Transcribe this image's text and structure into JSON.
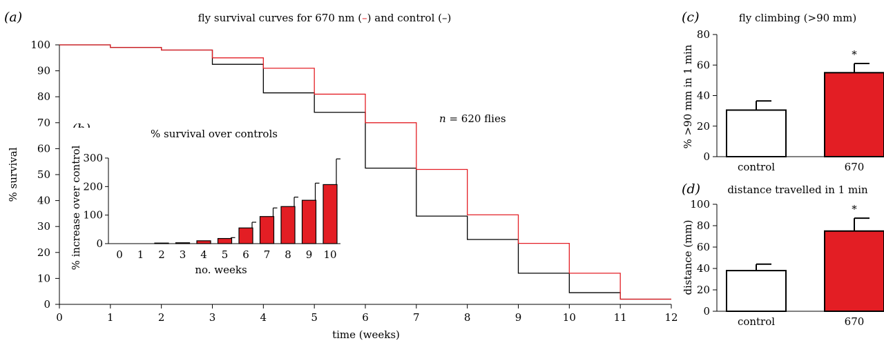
{
  "figure": {
    "panel_a": {
      "letter": "a",
      "n_label": "n",
      "n_rest": " = 620 flies"
    },
    "panel_b": {
      "letter": "b"
    },
    "panel_c": {
      "letter": "c"
    },
    "panel_d": {
      "letter": "d"
    }
  },
  "chart_data": [
    {
      "id": "a",
      "type": "line",
      "step": true,
      "title_parts": [
        "fly survival curves for 670 nm (",
        "–",
        ") and control (",
        "–",
        ")"
      ],
      "title_colors": [
        "#000000",
        "#e31e24",
        "#000000",
        "#000000",
        "#000000"
      ],
      "xlabel": "time (weeks)",
      "ylabel": "% survival",
      "xlim": [
        0,
        12
      ],
      "ylim": [
        0,
        100
      ],
      "x_ticks": [
        "0",
        "1",
        "2",
        "3",
        "4",
        "5",
        "6",
        "7",
        "8",
        "9",
        "10",
        "11",
        "12"
      ],
      "y_ticks": [
        "0",
        "10",
        "20",
        "30",
        "40",
        "50",
        "60",
        "70",
        "80",
        "90",
        "100"
      ],
      "series": [
        {
          "color": "#000000",
          "x": [
            0,
            1,
            2,
            3,
            4,
            5,
            6,
            7,
            8,
            9,
            10,
            11,
            12
          ],
          "y": [
            100,
            99,
            98,
            92.5,
            81.5,
            74,
            52.5,
            34,
            25,
            12,
            4.5,
            2,
            2
          ]
        },
        {
          "color": "#e31e24",
          "x": [
            0,
            1,
            2,
            3,
            4,
            5,
            6,
            7,
            8,
            9,
            10,
            11,
            12
          ],
          "y": [
            100,
            99,
            98,
            95,
            91,
            81,
            70,
            52,
            34.5,
            23.5,
            12,
            2,
            2
          ]
        }
      ]
    },
    {
      "id": "b",
      "type": "bar",
      "title": "% survival over controls",
      "xlabel": "no. weeks",
      "ylabel": "% increase over control",
      "categories": [
        "0",
        "1",
        "2",
        "3",
        "4",
        "5",
        "6",
        "7",
        "8",
        "9",
        "10"
      ],
      "values": [
        0,
        0,
        2,
        3,
        10,
        18,
        55,
        95,
        130,
        152,
        207
      ],
      "errors": [
        0,
        0,
        0,
        0,
        0,
        3,
        20,
        30,
        33,
        60,
        90
      ],
      "ylim": [
        0,
        300
      ],
      "y_ticks": [
        "0",
        "100",
        "200",
        "300"
      ],
      "color": "#e31e24"
    },
    {
      "id": "c",
      "type": "bar",
      "title": "fly climbing (>90 mm)",
      "ylabel": "% >90 mm in 1 min",
      "categories": [
        "control",
        "670"
      ],
      "values": [
        30.5,
        55
      ],
      "errors": [
        6,
        6
      ],
      "colors": [
        "#ffffff",
        "#e31e24"
      ],
      "ylim": [
        0,
        80
      ],
      "y_ticks": [
        "0",
        "20",
        "40",
        "60",
        "80"
      ],
      "annotation": "*"
    },
    {
      "id": "d",
      "type": "bar",
      "title": "distance travelled in 1 min",
      "ylabel": "distance (mm)",
      "categories": [
        "control",
        "670"
      ],
      "values": [
        38,
        75
      ],
      "errors": [
        6,
        12
      ],
      "colors": [
        "#ffffff",
        "#e31e24"
      ],
      "ylim": [
        0,
        100
      ],
      "y_ticks": [
        "0",
        "20",
        "40",
        "60",
        "80",
        "100"
      ],
      "annotation": "*"
    }
  ]
}
